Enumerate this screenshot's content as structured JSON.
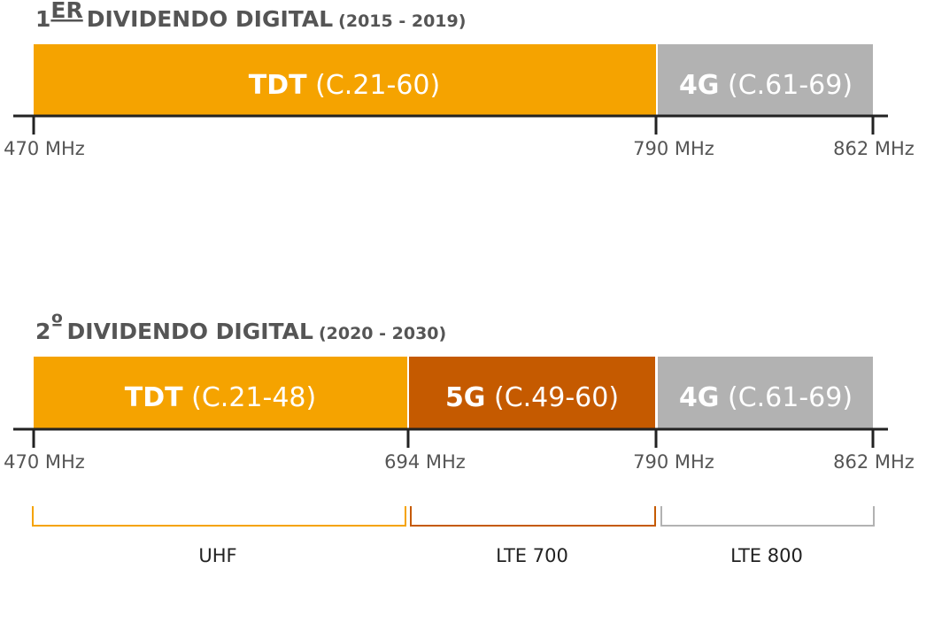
{
  "panels": [
    {
      "title": {
        "number": "1",
        "sup": "ER",
        "main": "DIVIDENDO DIGITAL",
        "years": "(2015 - 2019)"
      },
      "segments": [
        {
          "name": "TDT",
          "channels": "(C.21-60)",
          "color": "#f5a300"
        },
        {
          "name": "4G",
          "channels": "(C.61-69)",
          "color": "#b2b2b2"
        }
      ],
      "ticks": [
        "470 MHz",
        "790 MHz",
        "862 MHz"
      ]
    },
    {
      "title": {
        "number": "2",
        "sup": "º",
        "main": "DIVIDENDO DIGITAL",
        "years": "(2020 - 2030)"
      },
      "segments": [
        {
          "name": "TDT",
          "channels": "(C.21-48)",
          "color": "#f5a300"
        },
        {
          "name": "5G",
          "channels": "(C.49-60)",
          "color": "#c55a00"
        },
        {
          "name": "4G",
          "channels": "(C.61-69)",
          "color": "#b2b2b2"
        }
      ],
      "ticks": [
        "470 MHz",
        "694 MHz",
        "790 MHz",
        "862 MHz"
      ]
    }
  ],
  "brackets": [
    {
      "label": "UHF",
      "color": "#f5a300"
    },
    {
      "label": "LTE 700",
      "color": "#c55a00"
    },
    {
      "label": "LTE 800",
      "color": "#b2b2b2"
    }
  ]
}
